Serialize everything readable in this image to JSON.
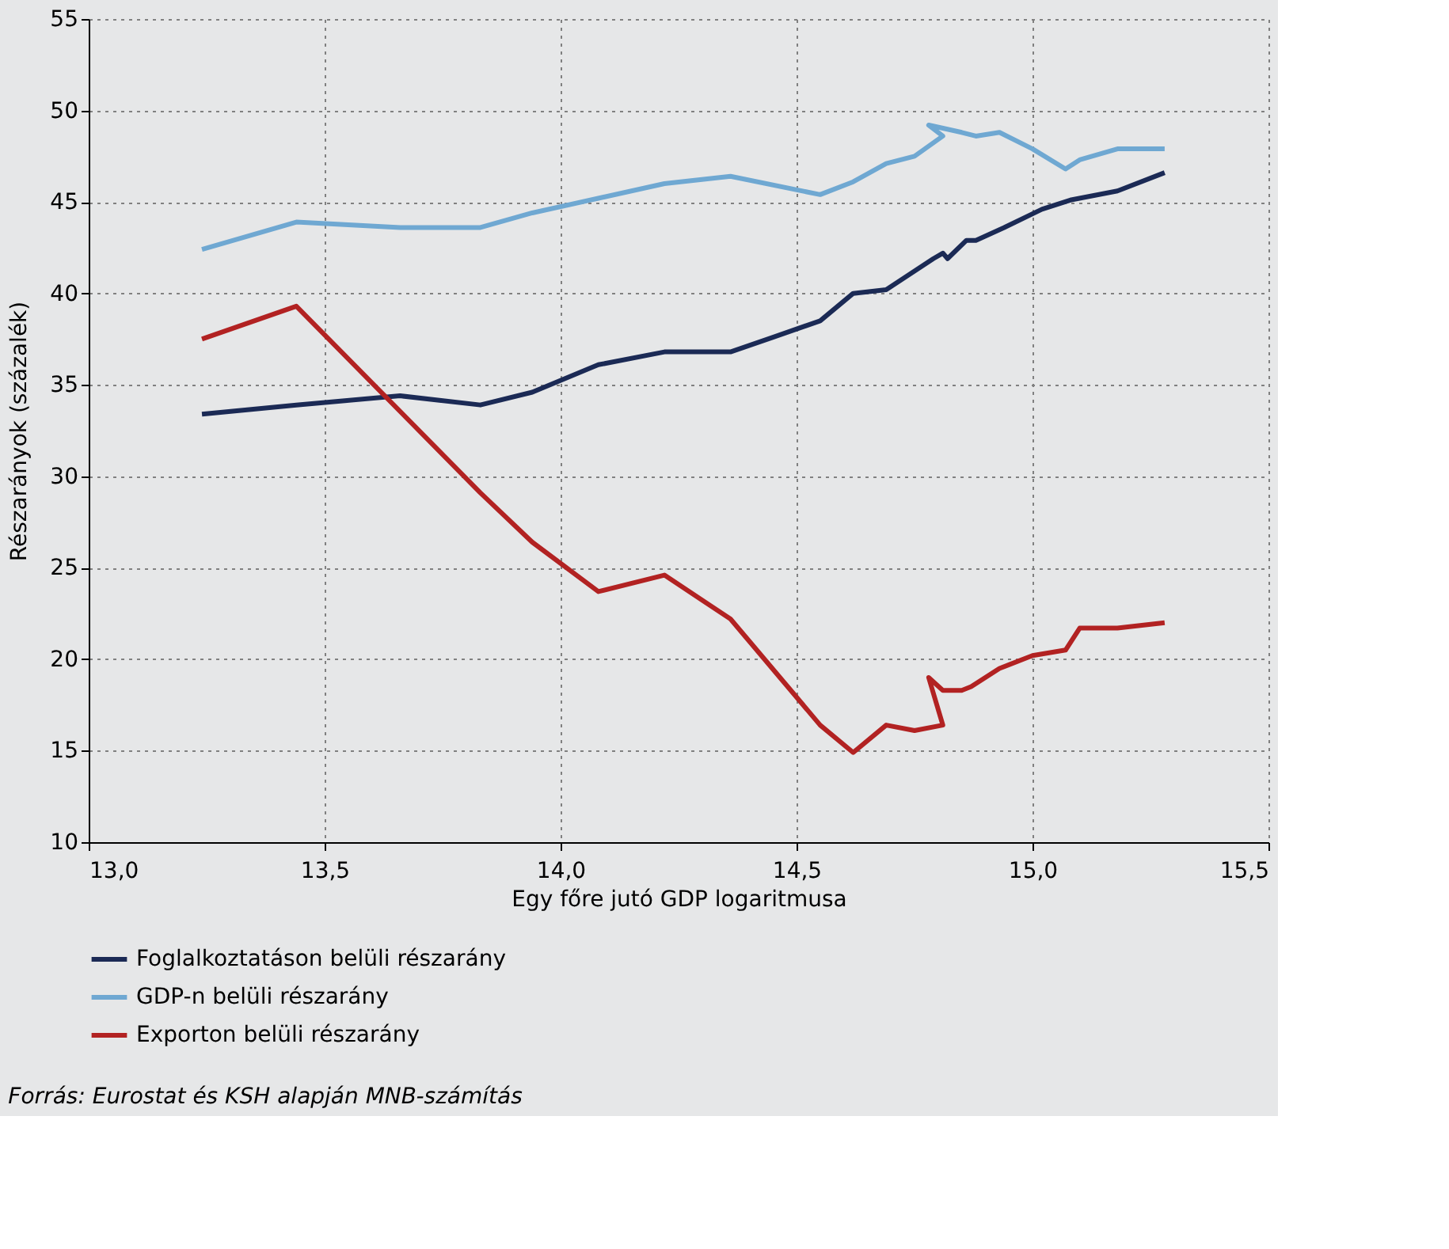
{
  "chart_data": {
    "type": "line",
    "xlabel": "Egy főre jutó GDP logaritmusa",
    "ylabel": "Részarányok (százalék)",
    "xlim": [
      13.0,
      15.5
    ],
    "xticks": [
      {
        "value": 13.0,
        "label": "13,0"
      },
      {
        "value": 13.5,
        "label": "13,5"
      },
      {
        "value": 14.0,
        "label": "14,0"
      },
      {
        "value": 14.5,
        "label": "14,5"
      },
      {
        "value": 15.0,
        "label": "15,0"
      },
      {
        "value": 15.5,
        "label": "15,5"
      }
    ],
    "ylim": [
      10,
      55
    ],
    "yticks": [
      10,
      15,
      20,
      25,
      30,
      35,
      40,
      45,
      50,
      55
    ],
    "grid": true,
    "legend": "bottom",
    "line_style": "solid",
    "marker": "none",
    "series": [
      {
        "name": "Foglalkoztatáson belüli részarány",
        "color": "#1b2a55",
        "x": [
          13.24,
          13.44,
          13.66,
          13.83,
          13.94,
          14.08,
          14.22,
          14.36,
          14.45,
          14.55,
          14.62,
          14.69,
          14.79,
          14.81,
          14.82,
          14.86,
          14.88,
          14.94,
          15.02,
          15.08,
          15.18,
          15.28
        ],
        "values": [
          33.4,
          33.9,
          34.4,
          33.9,
          34.6,
          36.1,
          36.8,
          36.8,
          37.6,
          38.5,
          40.0,
          40.2,
          41.9,
          42.2,
          41.9,
          42.9,
          42.9,
          43.6,
          44.6,
          45.1,
          45.6,
          46.6
        ]
      },
      {
        "name": "GDP-n belüli részarány",
        "color": "#6fa8d2",
        "x": [
          13.24,
          13.44,
          13.66,
          13.83,
          13.94,
          14.08,
          14.22,
          14.36,
          14.55,
          14.62,
          14.69,
          14.75,
          14.81,
          14.78,
          14.85,
          14.88,
          14.93,
          15.0,
          15.07,
          15.1,
          15.18,
          15.28
        ],
        "values": [
          42.4,
          43.9,
          43.6,
          43.6,
          44.4,
          45.2,
          46.0,
          46.4,
          45.4,
          46.1,
          47.1,
          47.5,
          48.6,
          49.2,
          48.8,
          48.6,
          48.8,
          47.9,
          46.8,
          47.3,
          47.9,
          47.9
        ]
      },
      {
        "name": "Exporton belüli részarány",
        "color": "#b22222",
        "x": [
          13.24,
          13.44,
          13.83,
          13.94,
          14.08,
          14.22,
          14.36,
          14.55,
          14.62,
          14.69,
          14.75,
          14.81,
          14.78,
          14.81,
          14.85,
          14.87,
          14.93,
          15.0,
          15.07,
          15.1,
          15.18,
          15.28
        ],
        "values": [
          37.5,
          39.3,
          29.1,
          26.4,
          23.7,
          24.6,
          22.2,
          16.4,
          14.9,
          16.4,
          16.1,
          16.4,
          19.0,
          18.3,
          18.3,
          18.5,
          19.5,
          20.2,
          20.5,
          21.7,
          21.7,
          22.0
        ]
      }
    ],
    "annotations": [
      "Forrás: Eurostat és KSH alapján MNB-számítás"
    ]
  }
}
